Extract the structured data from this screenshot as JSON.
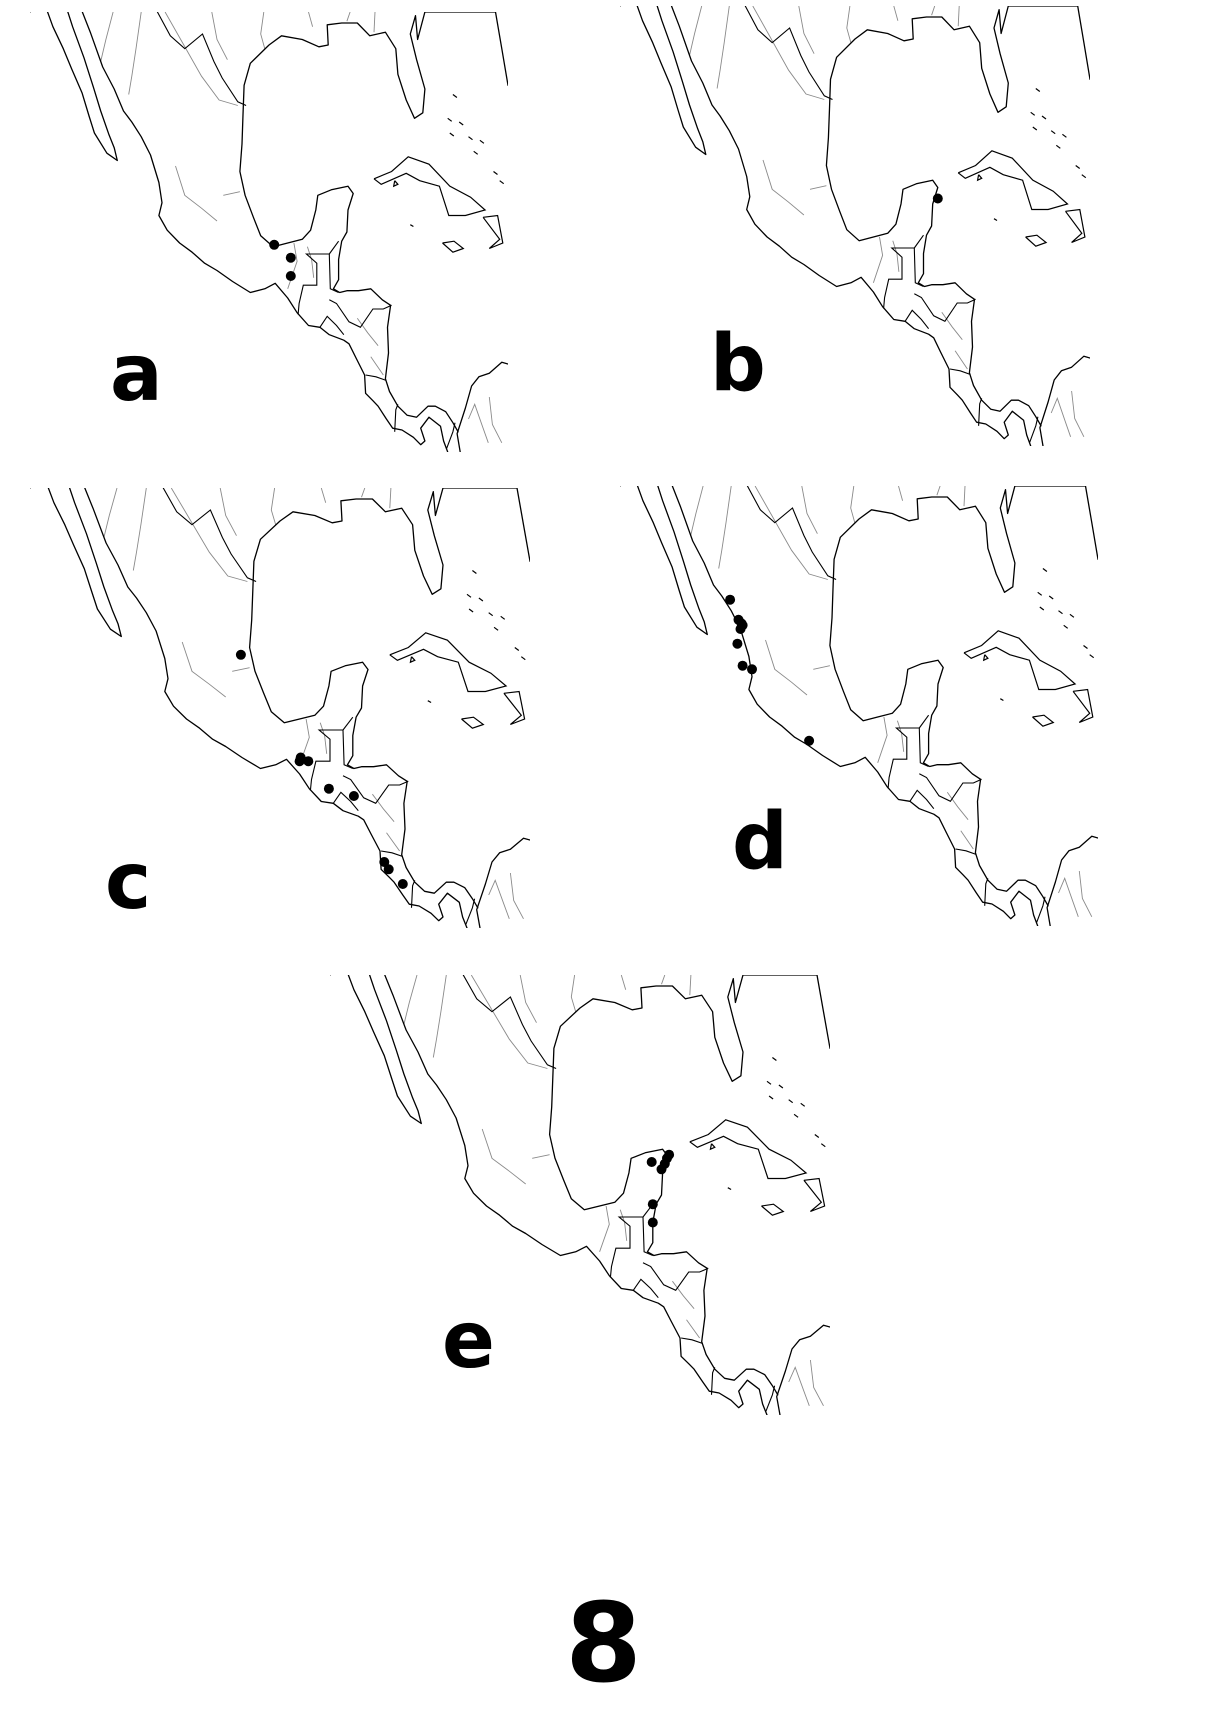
{
  "figure_number": "8",
  "panels": [
    {
      "letter": "a",
      "records": [
        {
          "lat": 18.3,
          "lon": -94.5
        },
        {
          "lat": 17.6,
          "lon": -92.9
        },
        {
          "lat": 16.6,
          "lon": -92.9
        }
      ]
    },
    {
      "letter": "b",
      "records": [
        {
          "lat": 20.5,
          "lon": -86.9
        }
      ]
    },
    {
      "letter": "c",
      "records": [
        {
          "lat": 21.9,
          "lon": -98.6
        },
        {
          "lat": 16.3,
          "lon": -93.1
        },
        {
          "lat": 16.1,
          "lon": -93.2
        },
        {
          "lat": 16.1,
          "lon": -92.4
        },
        {
          "lat": 14.6,
          "lon": -90.5
        },
        {
          "lat": 14.2,
          "lon": -88.2
        },
        {
          "lat": 10.6,
          "lon": -85.4
        },
        {
          "lat": 10.2,
          "lon": -85.0
        },
        {
          "lat": 9.4,
          "lon": -83.7
        }
      ]
    },
    {
      "letter": "d",
      "records": [
        {
          "lat": 24.8,
          "lon": -107.4
        },
        {
          "lat": 23.7,
          "lon": -106.6
        },
        {
          "lat": 23.5,
          "lon": -106.3
        },
        {
          "lat": 23.4,
          "lon": -106.2
        },
        {
          "lat": 23.2,
          "lon": -106.4
        },
        {
          "lat": 22.4,
          "lon": -106.7
        },
        {
          "lat": 21.2,
          "lon": -106.2
        },
        {
          "lat": 21.0,
          "lon": -105.3
        },
        {
          "lat": 17.1,
          "lon": -99.8
        }
      ]
    },
    {
      "letter": "e",
      "records": [
        {
          "lat": 21.2,
          "lon": -86.8
        },
        {
          "lat": 21.0,
          "lon": -87.0
        },
        {
          "lat": 20.7,
          "lon": -87.2
        },
        {
          "lat": 20.4,
          "lon": -87.5
        },
        {
          "lat": 20.8,
          "lon": -88.4
        },
        {
          "lat": 18.5,
          "lon": -88.3
        },
        {
          "lat": 17.5,
          "lon": -88.3
        }
      ]
    }
  ]
}
